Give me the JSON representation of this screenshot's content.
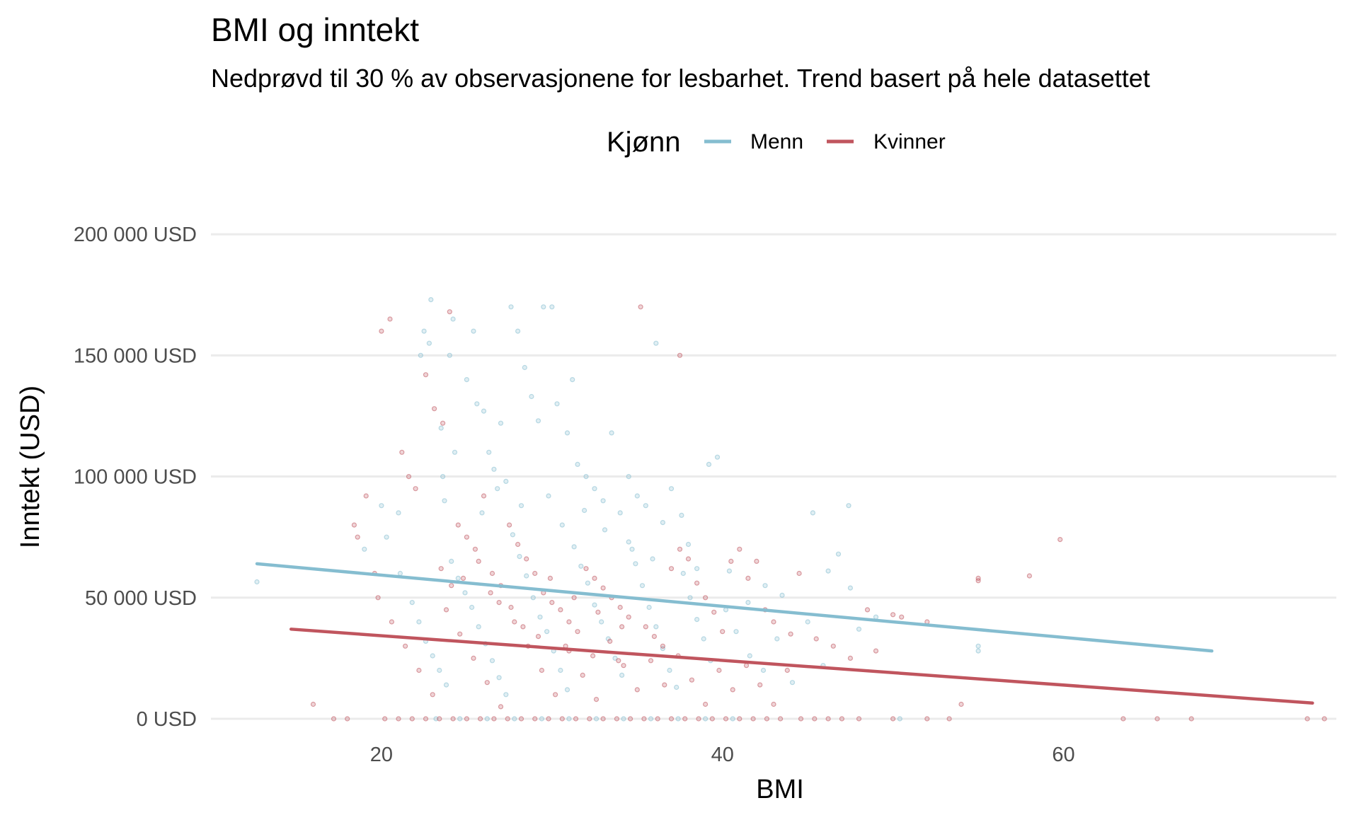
{
  "chart_data": {
    "type": "scatter",
    "title": "BMI og inntekt",
    "subtitle": "Nedprøvd til 30 % av observasjonene for lesbarhet. Trend basert på hele datasettet",
    "xlabel": "BMI",
    "ylabel": "Inntekt (USD)",
    "xlim": [
      10,
      76
    ],
    "ylim": [
      -7000,
      212000
    ],
    "x_ticks": [
      {
        "value": 20,
        "label": "20"
      },
      {
        "value": 40,
        "label": "40"
      },
      {
        "value": 60,
        "label": "60"
      }
    ],
    "y_ticks": [
      {
        "value": 0,
        "label": "0 USD"
      },
      {
        "value": 50000,
        "label": "50 000 USD"
      },
      {
        "value": 100000,
        "label": "100 000 USD"
      },
      {
        "value": 150000,
        "label": "150 000 USD"
      },
      {
        "value": 200000,
        "label": "200 000 USD"
      }
    ],
    "grid": true,
    "legend": {
      "title": "Kjønn",
      "position": "top"
    },
    "series": [
      {
        "name": "Menn",
        "color": "#85bdd0",
        "trend": {
          "x": [
            12.7,
            68.7
          ],
          "y": [
            64000,
            28000
          ]
        },
        "points": [
          [
            12.7,
            56500
          ],
          [
            20,
            88000
          ],
          [
            21,
            85000
          ],
          [
            22.3,
            150000
          ],
          [
            22.8,
            155000
          ],
          [
            22.5,
            160000
          ],
          [
            22.9,
            173000
          ],
          [
            23.5,
            120000
          ],
          [
            23.6,
            100000
          ],
          [
            23.7,
            90000
          ],
          [
            24.2,
            165000
          ],
          [
            24,
            150000
          ],
          [
            25,
            140000
          ],
          [
            25.4,
            160000
          ],
          [
            25.6,
            130000
          ],
          [
            26,
            127000
          ],
          [
            26.3,
            110000
          ],
          [
            26.6,
            103000
          ],
          [
            27,
            122000
          ],
          [
            27.3,
            98000
          ],
          [
            27.6,
            170000
          ],
          [
            28,
            160000
          ],
          [
            28.4,
            145000
          ],
          [
            28.8,
            133000
          ],
          [
            29.2,
            123000
          ],
          [
            29.5,
            170000
          ],
          [
            30,
            170000
          ],
          [
            30.3,
            130000
          ],
          [
            30.9,
            118000
          ],
          [
            31.2,
            140000
          ],
          [
            31.5,
            105000
          ],
          [
            32,
            100000
          ],
          [
            32.5,
            95000
          ],
          [
            33,
            90000
          ],
          [
            33.5,
            118000
          ],
          [
            34,
            85000
          ],
          [
            34.5,
            100000
          ],
          [
            35,
            92000
          ],
          [
            35.5,
            88000
          ],
          [
            36.1,
            155000
          ],
          [
            36.5,
            81000
          ],
          [
            37,
            95000
          ],
          [
            37.6,
            84000
          ],
          [
            38,
            72000
          ],
          [
            38.5,
            62000
          ],
          [
            39.2,
            105000
          ],
          [
            39.7,
            108000
          ],
          [
            40.4,
            61000
          ],
          [
            41.5,
            48000
          ],
          [
            42.5,
            55000
          ],
          [
            43.5,
            51000
          ],
          [
            45.3,
            85000
          ],
          [
            46.2,
            61000
          ],
          [
            46.8,
            68000
          ],
          [
            47.4,
            88000
          ],
          [
            47.5,
            54000
          ],
          [
            48,
            37000
          ],
          [
            49,
            42000
          ],
          [
            50.4,
            0
          ],
          [
            55,
            30000
          ],
          [
            55,
            28000
          ],
          [
            19,
            70000
          ],
          [
            20.3,
            75000
          ],
          [
            21.1,
            60000
          ],
          [
            21.8,
            48000
          ],
          [
            22.2,
            40000
          ],
          [
            22.6,
            32000
          ],
          [
            23,
            26000
          ],
          [
            23.4,
            20000
          ],
          [
            23.8,
            14000
          ],
          [
            24.1,
            65000
          ],
          [
            24.5,
            58000
          ],
          [
            24.9,
            52000
          ],
          [
            25.3,
            46000
          ],
          [
            25.7,
            38000
          ],
          [
            26.1,
            31000
          ],
          [
            26.5,
            24000
          ],
          [
            26.9,
            17000
          ],
          [
            27.3,
            10000
          ],
          [
            27.7,
            76000
          ],
          [
            28.1,
            67000
          ],
          [
            28.5,
            59000
          ],
          [
            28.9,
            50000
          ],
          [
            29.3,
            42000
          ],
          [
            29.7,
            36000
          ],
          [
            30.1,
            28000
          ],
          [
            30.5,
            20000
          ],
          [
            30.9,
            12000
          ],
          [
            31.3,
            71000
          ],
          [
            31.7,
            63000
          ],
          [
            32.1,
            56000
          ],
          [
            32.5,
            47000
          ],
          [
            32.9,
            40000
          ],
          [
            33.3,
            33000
          ],
          [
            33.7,
            25000
          ],
          [
            34.1,
            18000
          ],
          [
            34.5,
            73000
          ],
          [
            34.9,
            64000
          ],
          [
            35.3,
            55000
          ],
          [
            35.7,
            46000
          ],
          [
            36.1,
            38000
          ],
          [
            36.5,
            29000
          ],
          [
            36.9,
            20000
          ],
          [
            37.3,
            13000
          ],
          [
            37.7,
            60000
          ],
          [
            38.1,
            50000
          ],
          [
            38.5,
            41000
          ],
          [
            38.9,
            33000
          ],
          [
            39.3,
            24000
          ],
          [
            40.2,
            45000
          ],
          [
            40.8,
            36000
          ],
          [
            41.6,
            26000
          ],
          [
            42.4,
            20000
          ],
          [
            43.2,
            33000
          ],
          [
            44.1,
            15000
          ],
          [
            45,
            40000
          ],
          [
            45.9,
            22000
          ],
          [
            23.2,
            0
          ],
          [
            24.6,
            0
          ],
          [
            26.2,
            0
          ],
          [
            27.8,
            0
          ],
          [
            29.4,
            0
          ],
          [
            31,
            0
          ],
          [
            32.6,
            0
          ],
          [
            34.2,
            0
          ],
          [
            35.8,
            0
          ],
          [
            37.4,
            0
          ],
          [
            39,
            0
          ],
          [
            40.6,
            0
          ],
          [
            24.3,
            110000
          ],
          [
            25.9,
            85000
          ],
          [
            26.8,
            95000
          ],
          [
            28.2,
            88000
          ],
          [
            29.8,
            92000
          ],
          [
            30.6,
            80000
          ],
          [
            31.9,
            86000
          ],
          [
            33.1,
            78000
          ],
          [
            34.7,
            70000
          ],
          [
            35.9,
            66000
          ]
        ]
      },
      {
        "name": "Kvinner",
        "color": "#c0555e",
        "trend": {
          "x": [
            14.7,
            74.6
          ],
          "y": [
            37000,
            6500
          ]
        },
        "points": [
          [
            16,
            6000
          ],
          [
            17.2,
            0
          ],
          [
            18,
            0
          ],
          [
            18.4,
            80000
          ],
          [
            18.6,
            75000
          ],
          [
            19.1,
            92000
          ],
          [
            19.6,
            60000
          ],
          [
            20,
            160000
          ],
          [
            20.5,
            165000
          ],
          [
            21.2,
            110000
          ],
          [
            21.6,
            100000
          ],
          [
            22,
            95000
          ],
          [
            22.6,
            142000
          ],
          [
            23.1,
            128000
          ],
          [
            23.6,
            122000
          ],
          [
            24,
            168000
          ],
          [
            24.5,
            80000
          ],
          [
            25,
            75000
          ],
          [
            25.5,
            70000
          ],
          [
            26,
            92000
          ],
          [
            26.5,
            60000
          ],
          [
            27,
            55000
          ],
          [
            27.5,
            80000
          ],
          [
            28,
            72000
          ],
          [
            28.5,
            66000
          ],
          [
            29,
            60000
          ],
          [
            29.5,
            52000
          ],
          [
            30,
            48000
          ],
          [
            30.5,
            45000
          ],
          [
            31,
            40000
          ],
          [
            31.5,
            36000
          ],
          [
            32,
            62000
          ],
          [
            32.5,
            58000
          ],
          [
            33,
            54000
          ],
          [
            33.5,
            50000
          ],
          [
            34,
            46000
          ],
          [
            34.5,
            42000
          ],
          [
            35.2,
            170000
          ],
          [
            35.5,
            38000
          ],
          [
            36,
            34000
          ],
          [
            36.5,
            30000
          ],
          [
            37,
            62000
          ],
          [
            37.5,
            70000
          ],
          [
            38,
            66000
          ],
          [
            38.5,
            56000
          ],
          [
            39,
            50000
          ],
          [
            39.5,
            44000
          ],
          [
            40,
            36000
          ],
          [
            40.5,
            65000
          ],
          [
            41,
            70000
          ],
          [
            41.5,
            58000
          ],
          [
            42,
            65000
          ],
          [
            42.5,
            45000
          ],
          [
            43,
            40000
          ],
          [
            44,
            35000
          ],
          [
            44.5,
            60000
          ],
          [
            45.5,
            33000
          ],
          [
            46.5,
            30000
          ],
          [
            47.5,
            25000
          ],
          [
            48.5,
            45000
          ],
          [
            49,
            28000
          ],
          [
            50,
            43000
          ],
          [
            50.5,
            42000
          ],
          [
            52,
            40000
          ],
          [
            53.3,
            0
          ],
          [
            54,
            6000
          ],
          [
            55,
            58000
          ],
          [
            55,
            57000
          ],
          [
            58,
            59000
          ],
          [
            59.8,
            74000
          ],
          [
            63.5,
            0
          ],
          [
            65.5,
            0
          ],
          [
            67.5,
            0
          ],
          [
            74.3,
            0
          ],
          [
            75.3,
            0
          ],
          [
            37.5,
            150000
          ],
          [
            19.8,
            50000
          ],
          [
            20.6,
            40000
          ],
          [
            21.4,
            30000
          ],
          [
            22.2,
            20000
          ],
          [
            23,
            10000
          ],
          [
            23.8,
            45000
          ],
          [
            24.6,
            35000
          ],
          [
            25.4,
            25000
          ],
          [
            26.2,
            15000
          ],
          [
            27,
            5000
          ],
          [
            27.8,
            40000
          ],
          [
            28.6,
            30000
          ],
          [
            29.4,
            20000
          ],
          [
            30.2,
            10000
          ],
          [
            31,
            28000
          ],
          [
            31.8,
            18000
          ],
          [
            32.6,
            8000
          ],
          [
            33.4,
            32000
          ],
          [
            34.2,
            22000
          ],
          [
            35,
            12000
          ],
          [
            35.8,
            24000
          ],
          [
            36.6,
            14000
          ],
          [
            37.4,
            26000
          ],
          [
            38.2,
            16000
          ],
          [
            39,
            6000
          ],
          [
            39.8,
            20000
          ],
          [
            40.6,
            12000
          ],
          [
            41.4,
            22000
          ],
          [
            42.2,
            14000
          ],
          [
            43,
            6000
          ],
          [
            43.8,
            20000
          ],
          [
            44.6,
            0
          ],
          [
            45.4,
            0
          ],
          [
            46.2,
            0
          ],
          [
            47,
            0
          ],
          [
            48,
            0
          ],
          [
            50,
            0
          ],
          [
            52,
            0
          ],
          [
            20.2,
            0
          ],
          [
            21,
            0
          ],
          [
            21.8,
            0
          ],
          [
            22.6,
            0
          ],
          [
            23.4,
            0
          ],
          [
            24.2,
            0
          ],
          [
            25,
            0
          ],
          [
            25.8,
            0
          ],
          [
            26.6,
            0
          ],
          [
            27.4,
            0
          ],
          [
            28.2,
            0
          ],
          [
            29,
            0
          ],
          [
            29.8,
            0
          ],
          [
            30.6,
            0
          ],
          [
            31.4,
            0
          ],
          [
            32.2,
            0
          ],
          [
            33,
            0
          ],
          [
            33.8,
            0
          ],
          [
            34.6,
            0
          ],
          [
            35.4,
            0
          ],
          [
            36.2,
            0
          ],
          [
            37,
            0
          ],
          [
            37.8,
            0
          ],
          [
            38.6,
            0
          ],
          [
            39.4,
            0
          ],
          [
            40.2,
            0
          ],
          [
            41,
            0
          ],
          [
            41.8,
            0
          ],
          [
            42.6,
            0
          ],
          [
            43.4,
            0
          ],
          [
            24.1,
            55000
          ],
          [
            25.7,
            65000
          ],
          [
            26.9,
            48000
          ],
          [
            28.3,
            38000
          ],
          [
            29.9,
            58000
          ],
          [
            31.3,
            50000
          ],
          [
            32.7,
            44000
          ],
          [
            34.1,
            38000
          ],
          [
            23.5,
            62000
          ],
          [
            24.8,
            58000
          ],
          [
            26.4,
            52000
          ],
          [
            27.6,
            46000
          ],
          [
            29.2,
            34000
          ],
          [
            30.8,
            30000
          ],
          [
            32.4,
            26000
          ],
          [
            33.9,
            24000
          ]
        ]
      }
    ]
  }
}
